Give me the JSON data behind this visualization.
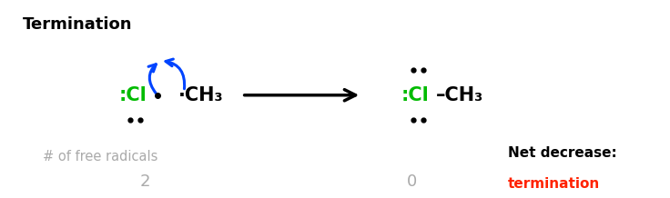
{
  "title": "Termination",
  "title_fontsize": 13,
  "title_fontweight": "bold",
  "background_color": "#ffffff",
  "cl_color": "#00bb00",
  "ch3_color": "#000000",
  "electron_arrow_color": "#0044ff",
  "radical_color": "#000000",
  "label_free_radicals": "# of free radicals",
  "label_free_radicals_color": "#aaaaaa",
  "num_color": "#aaaaaa",
  "net_decrease_text": "Net decrease:",
  "net_decrease_color": "#000000",
  "termination_text": "termination",
  "termination_color": "#ff2200"
}
